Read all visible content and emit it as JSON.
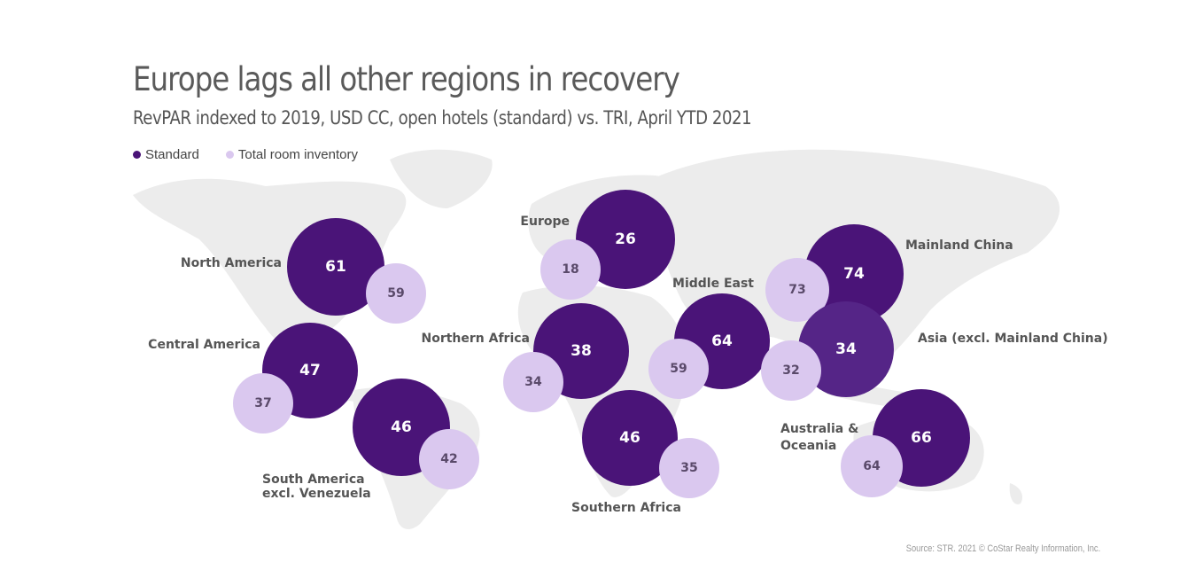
{
  "title": "Europe lags all other regions in recovery",
  "subtitle": "RevPAR indexed to 2019, USD CC, open hotels (standard) vs. TRI, April YTD 2021",
  "source": "Source: STR. 2021 © CoStar Realty Information, Inc.",
  "colors": {
    "standard": "#4a1478",
    "standard_alt": "#552587",
    "tri": "#dac8ef",
    "map": "#ececec"
  },
  "chart_data": {
    "type": "bubble-map",
    "title": "Europe lags all other regions in recovery",
    "subtitle": "RevPAR indexed to 2019, USD CC, open hotels (standard) vs. TRI, April YTD 2021",
    "legend": [
      "Standard",
      "Total room inventory"
    ],
    "legend_position": "top-left",
    "regions": [
      {
        "name": "North America",
        "standard": 61,
        "tri": 59
      },
      {
        "name": "Central America",
        "standard": 47,
        "tri": 37
      },
      {
        "name": "South America\nexcl. Venezuela",
        "standard": 46,
        "tri": 42
      },
      {
        "name": "Europe",
        "standard": 26,
        "tri": 18
      },
      {
        "name": "Northern Africa",
        "standard": 38,
        "tri": 34
      },
      {
        "name": "Southern Africa",
        "standard": 46,
        "tri": 35
      },
      {
        "name": "Middle East",
        "standard": 64,
        "tri": 59
      },
      {
        "name": "Mainland China",
        "standard": 74,
        "tri": 73
      },
      {
        "name": "Asia (excl. Mainland China)",
        "standard": 34,
        "tri": 32
      },
      {
        "name": "Australia &\nOceania",
        "standard": 66,
        "tri": 64
      }
    ]
  }
}
